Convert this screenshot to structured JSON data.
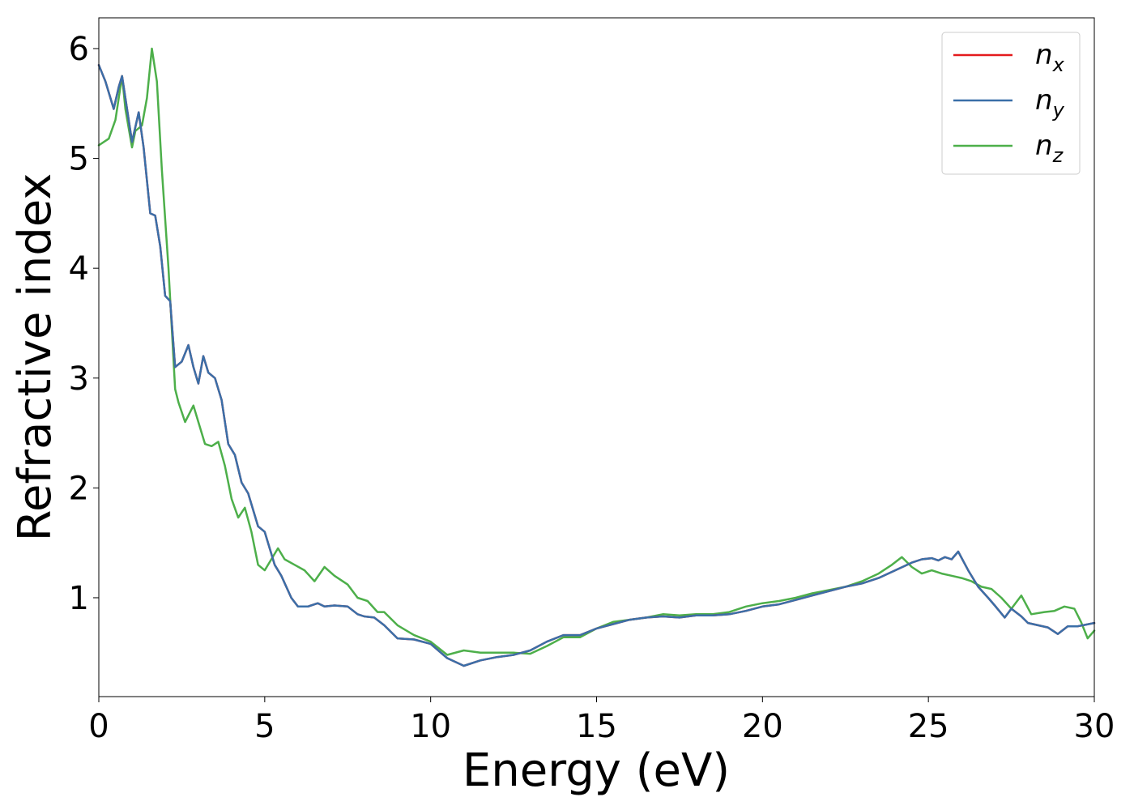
{
  "chart_data": {
    "type": "line",
    "xlabel": "Energy (eV)",
    "ylabel": "Refractive index",
    "xlim": [
      0,
      30
    ],
    "ylim": [
      0.1,
      6.28
    ],
    "xticks": [
      0,
      5,
      10,
      15,
      20,
      25,
      30
    ],
    "xtick_labels": [
      "0",
      "5",
      "10",
      "15",
      "20",
      "25",
      "30"
    ],
    "yticks": [
      1,
      2,
      3,
      4,
      5,
      6
    ],
    "ytick_labels": [
      "1",
      "2",
      "3",
      "4",
      "5",
      "6"
    ],
    "grid": false,
    "legend": "top-right",
    "series": [
      {
        "name": "n_x",
        "label_main": "n",
        "label_sub": "x",
        "color": "#e41a1c",
        "x": [
          0,
          0.2,
          0.45,
          0.6,
          0.7,
          0.8,
          1.0,
          1.2,
          1.35,
          1.55,
          1.7,
          1.85,
          2.0,
          2.15,
          2.3,
          2.5,
          2.7,
          2.85,
          3.0,
          3.15,
          3.3,
          3.5,
          3.7,
          3.9,
          4.1,
          4.3,
          4.5,
          4.8,
          5.0,
          5.3,
          5.5,
          5.8,
          6.0,
          6.3,
          6.6,
          6.8,
          7.1,
          7.5,
          7.8,
          8.0,
          8.3,
          8.6,
          9.0,
          9.5,
          10.0,
          10.5,
          11.0,
          11.5,
          12.0,
          12.5,
          13.0,
          13.5,
          14.0,
          14.5,
          15.0,
          15.5,
          16.0,
          16.5,
          17.0,
          17.5,
          18.0,
          18.5,
          19.0,
          19.5,
          20.0,
          20.5,
          21.0,
          21.5,
          22.0,
          22.5,
          23.0,
          23.5,
          24.0,
          24.5,
          24.8,
          25.1,
          25.3,
          25.5,
          25.7,
          25.9,
          26.2,
          26.5,
          26.8,
          27.0,
          27.3,
          27.5,
          27.8,
          28.0,
          28.3,
          28.6,
          28.9,
          29.2,
          29.5,
          30.0
        ],
        "y": [
          5.85,
          5.7,
          5.45,
          5.65,
          5.75,
          5.55,
          5.15,
          5.42,
          5.1,
          4.5,
          4.48,
          4.2,
          3.75,
          3.7,
          3.1,
          3.15,
          3.3,
          3.1,
          2.95,
          3.2,
          3.05,
          3.0,
          2.8,
          2.4,
          2.3,
          2.05,
          1.95,
          1.65,
          1.6,
          1.3,
          1.2,
          1.0,
          0.92,
          0.92,
          0.95,
          0.92,
          0.93,
          0.92,
          0.85,
          0.83,
          0.82,
          0.75,
          0.63,
          0.62,
          0.58,
          0.45,
          0.38,
          0.43,
          0.46,
          0.48,
          0.52,
          0.6,
          0.66,
          0.66,
          0.72,
          0.76,
          0.8,
          0.82,
          0.83,
          0.82,
          0.84,
          0.84,
          0.85,
          0.88,
          0.92,
          0.94,
          0.98,
          1.02,
          1.06,
          1.1,
          1.13,
          1.18,
          1.25,
          1.32,
          1.35,
          1.36,
          1.34,
          1.37,
          1.35,
          1.42,
          1.25,
          1.1,
          1.0,
          0.93,
          0.82,
          0.9,
          0.83,
          0.77,
          0.75,
          0.73,
          0.67,
          0.74,
          0.74,
          0.77
        ]
      },
      {
        "name": "n_y",
        "label_main": "n",
        "label_sub": "y",
        "color": "#3a6fa8",
        "x": [
          0,
          0.2,
          0.45,
          0.6,
          0.7,
          0.8,
          1.0,
          1.2,
          1.35,
          1.55,
          1.7,
          1.85,
          2.0,
          2.15,
          2.3,
          2.5,
          2.7,
          2.85,
          3.0,
          3.15,
          3.3,
          3.5,
          3.7,
          3.9,
          4.1,
          4.3,
          4.5,
          4.8,
          5.0,
          5.3,
          5.5,
          5.8,
          6.0,
          6.3,
          6.6,
          6.8,
          7.1,
          7.5,
          7.8,
          8.0,
          8.3,
          8.6,
          9.0,
          9.5,
          10.0,
          10.5,
          11.0,
          11.5,
          12.0,
          12.5,
          13.0,
          13.5,
          14.0,
          14.5,
          15.0,
          15.5,
          16.0,
          16.5,
          17.0,
          17.5,
          18.0,
          18.5,
          19.0,
          19.5,
          20.0,
          20.5,
          21.0,
          21.5,
          22.0,
          22.5,
          23.0,
          23.5,
          24.0,
          24.5,
          24.8,
          25.1,
          25.3,
          25.5,
          25.7,
          25.9,
          26.2,
          26.5,
          26.8,
          27.0,
          27.3,
          27.5,
          27.8,
          28.0,
          28.3,
          28.6,
          28.9,
          29.2,
          29.5,
          30.0
        ],
        "y": [
          5.85,
          5.7,
          5.45,
          5.65,
          5.75,
          5.55,
          5.15,
          5.42,
          5.1,
          4.5,
          4.48,
          4.2,
          3.75,
          3.7,
          3.1,
          3.15,
          3.3,
          3.1,
          2.95,
          3.2,
          3.05,
          3.0,
          2.8,
          2.4,
          2.3,
          2.05,
          1.95,
          1.65,
          1.6,
          1.3,
          1.2,
          1.0,
          0.92,
          0.92,
          0.95,
          0.92,
          0.93,
          0.92,
          0.85,
          0.83,
          0.82,
          0.75,
          0.63,
          0.62,
          0.58,
          0.45,
          0.38,
          0.43,
          0.46,
          0.48,
          0.52,
          0.6,
          0.66,
          0.66,
          0.72,
          0.76,
          0.8,
          0.82,
          0.83,
          0.82,
          0.84,
          0.84,
          0.85,
          0.88,
          0.92,
          0.94,
          0.98,
          1.02,
          1.06,
          1.1,
          1.13,
          1.18,
          1.25,
          1.32,
          1.35,
          1.36,
          1.34,
          1.37,
          1.35,
          1.42,
          1.25,
          1.1,
          1.0,
          0.93,
          0.82,
          0.9,
          0.83,
          0.77,
          0.75,
          0.73,
          0.67,
          0.74,
          0.74,
          0.77
        ]
      },
      {
        "name": "n_z",
        "label_main": "n",
        "label_sub": "z",
        "color": "#4daf4a",
        "x": [
          0,
          0.3,
          0.5,
          0.7,
          0.8,
          1.0,
          1.1,
          1.3,
          1.45,
          1.6,
          1.75,
          1.9,
          2.1,
          2.3,
          2.4,
          2.6,
          2.85,
          3.0,
          3.2,
          3.4,
          3.6,
          3.8,
          4.0,
          4.2,
          4.4,
          4.6,
          4.8,
          5.0,
          5.2,
          5.4,
          5.6,
          5.9,
          6.2,
          6.5,
          6.8,
          7.1,
          7.5,
          7.8,
          8.1,
          8.4,
          8.6,
          9.0,
          9.5,
          10.0,
          10.5,
          11.0,
          11.5,
          12.0,
          12.5,
          13.0,
          13.5,
          14.0,
          14.5,
          15.0,
          15.5,
          16.0,
          16.5,
          17.0,
          17.5,
          18.0,
          18.5,
          19.0,
          19.5,
          20.0,
          20.5,
          21.0,
          21.5,
          22.0,
          22.5,
          23.0,
          23.5,
          23.9,
          24.2,
          24.5,
          24.8,
          25.1,
          25.4,
          25.7,
          26.0,
          26.3,
          26.6,
          26.9,
          27.2,
          27.5,
          27.8,
          28.1,
          28.5,
          28.8,
          29.1,
          29.4,
          29.6,
          29.8,
          30.0
        ],
        "y": [
          5.12,
          5.18,
          5.35,
          5.75,
          5.45,
          5.1,
          5.25,
          5.3,
          5.55,
          6.0,
          5.7,
          4.9,
          4.0,
          2.9,
          2.78,
          2.6,
          2.75,
          2.6,
          2.4,
          2.38,
          2.42,
          2.2,
          1.9,
          1.73,
          1.82,
          1.6,
          1.3,
          1.25,
          1.35,
          1.45,
          1.35,
          1.3,
          1.25,
          1.15,
          1.28,
          1.2,
          1.12,
          1.0,
          0.97,
          0.87,
          0.87,
          0.75,
          0.66,
          0.6,
          0.48,
          0.52,
          0.5,
          0.5,
          0.5,
          0.49,
          0.56,
          0.64,
          0.64,
          0.72,
          0.78,
          0.8,
          0.82,
          0.85,
          0.84,
          0.85,
          0.85,
          0.87,
          0.92,
          0.95,
          0.97,
          1.0,
          1.04,
          1.07,
          1.1,
          1.15,
          1.22,
          1.3,
          1.37,
          1.28,
          1.22,
          1.25,
          1.22,
          1.2,
          1.18,
          1.15,
          1.1,
          1.08,
          1.0,
          0.9,
          1.02,
          0.85,
          0.87,
          0.88,
          0.92,
          0.9,
          0.78,
          0.63,
          0.7
        ]
      }
    ]
  }
}
